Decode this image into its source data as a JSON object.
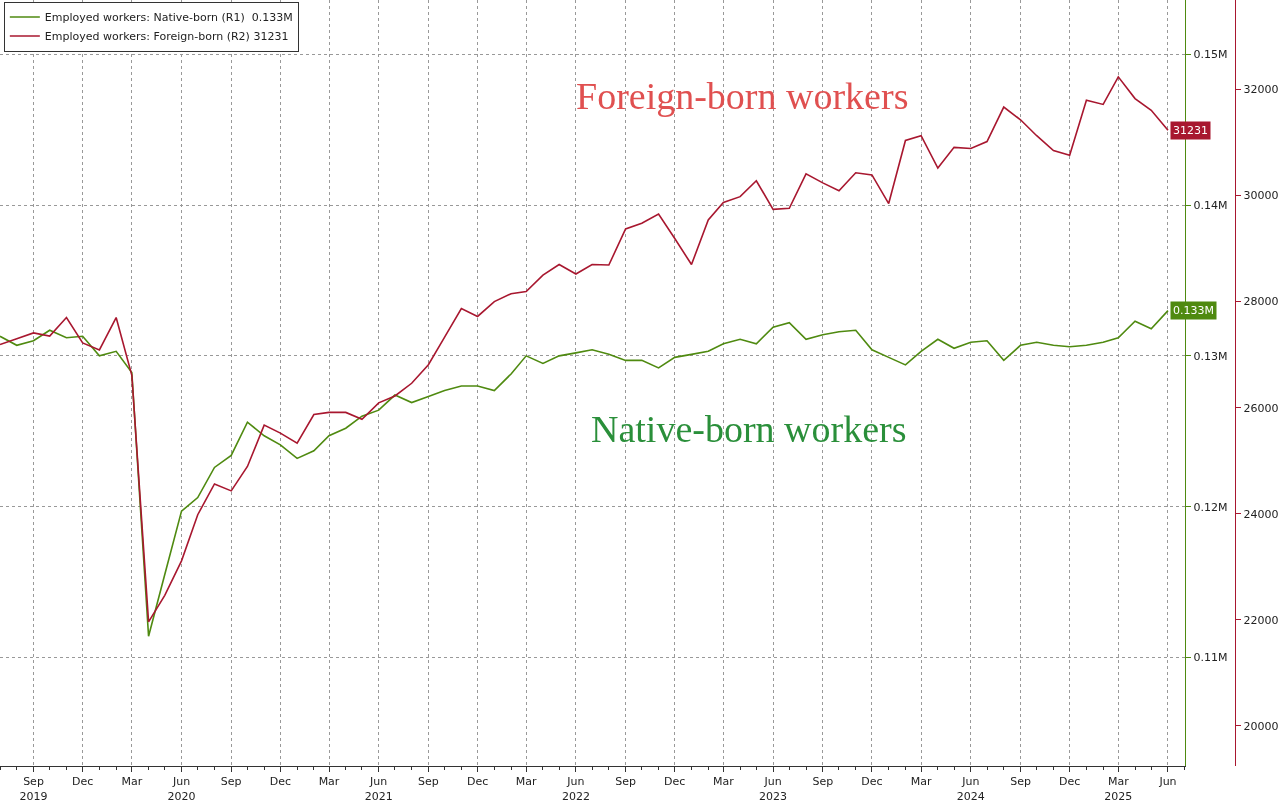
{
  "chart_data": {
    "type": "line",
    "x": [
      "2019-07",
      "2019-08",
      "2019-09",
      "2019-10",
      "2019-11",
      "2019-12",
      "2020-01",
      "2020-02",
      "2020-03",
      "2020-04",
      "2020-05",
      "2020-06",
      "2020-07",
      "2020-08",
      "2020-09",
      "2020-10",
      "2020-11",
      "2020-12",
      "2021-01",
      "2021-02",
      "2021-03",
      "2021-04",
      "2021-05",
      "2021-06",
      "2021-07",
      "2021-08",
      "2021-09",
      "2021-10",
      "2021-11",
      "2021-12",
      "2022-01",
      "2022-02",
      "2022-03",
      "2022-04",
      "2022-05",
      "2022-06",
      "2022-07",
      "2022-08",
      "2022-09",
      "2022-10",
      "2022-11",
      "2022-12",
      "2023-01",
      "2023-02",
      "2023-03",
      "2023-04",
      "2023-05",
      "2023-06",
      "2023-07",
      "2023-08",
      "2023-09",
      "2023-10",
      "2023-11",
      "2023-12",
      "2024-01",
      "2024-02",
      "2024-03",
      "2024-04",
      "2024-05",
      "2024-06",
      "2024-07",
      "2024-08",
      "2024-09",
      "2024-10",
      "2024-11",
      "2024-12",
      "2025-01",
      "2025-02",
      "2025-03",
      "2025-04",
      "2025-05",
      "2025-06"
    ],
    "series": [
      {
        "name": "Employed workers: Native-born (R1)  0.133M",
        "color": "#4f8a10",
        "values": [
          0.1313,
          0.1307,
          0.131,
          0.1317,
          0.1312,
          0.1313,
          0.13,
          0.1303,
          0.1289,
          0.1114,
          0.1155,
          0.1197,
          0.1206,
          0.1226,
          0.1234,
          0.1256,
          0.1247,
          0.1241,
          0.1232,
          0.1237,
          0.1247,
          0.1252,
          0.126,
          0.1264,
          0.1274,
          0.1269,
          0.1273,
          0.1277,
          0.128,
          0.128,
          0.1277,
          0.1288,
          0.13,
          0.1295,
          0.13,
          0.1302,
          0.1304,
          0.1301,
          0.1297,
          0.1297,
          0.1292,
          0.1299,
          0.1301,
          0.1303,
          0.1308,
          0.1311,
          0.1308,
          0.1319,
          0.1322,
          0.1311,
          0.1314,
          0.1316,
          0.1317,
          0.1304,
          0.1299,
          0.1294,
          0.1303,
          0.1311,
          0.1305,
          0.1309,
          0.131,
          0.1297,
          0.1307,
          0.1309,
          0.1307,
          0.1306,
          0.1307,
          0.1309,
          0.1312,
          0.1323,
          0.1318,
          0.133
        ],
        "value_labels": [
          null,
          null,
          null,
          null,
          null,
          null,
          null,
          null,
          null,
          null,
          null,
          null,
          null,
          null,
          null,
          null,
          null,
          null,
          null,
          null,
          null,
          null,
          null,
          null,
          null,
          null,
          null,
          null,
          null,
          null,
          null,
          null,
          null,
          null,
          null,
          null,
          null,
          null,
          null,
          null,
          null,
          null,
          null,
          null,
          null,
          null,
          null,
          null,
          null,
          null,
          null,
          null,
          null,
          null,
          null,
          null,
          null,
          null,
          null,
          null,
          null,
          null,
          null,
          null,
          null,
          null,
          null,
          null,
          null,
          null,
          null,
          "0.133M"
        ]
      },
      {
        "name": "Employed workers: Foreign-born (R2) 31231",
        "color": "#a8172f",
        "axis": "y2",
        "values": [
          27190,
          27300,
          27410,
          27350,
          27700,
          27220,
          27090,
          27700,
          26610,
          21960,
          22460,
          23110,
          23980,
          24560,
          24430,
          24890,
          25670,
          25520,
          25330,
          25870,
          25910,
          25910,
          25780,
          26090,
          26220,
          26460,
          26810,
          27330,
          27870,
          27720,
          28000,
          28150,
          28190,
          28500,
          28700,
          28520,
          28700,
          28690,
          29370,
          29480,
          29650,
          29190,
          28700,
          29540,
          29870,
          29980,
          30280,
          29740,
          29760,
          30410,
          30240,
          30090,
          30430,
          30390,
          29850,
          31040,
          31130,
          30520,
          30910,
          30890,
          31020,
          31670,
          31430,
          31130,
          30850,
          30760,
          31800,
          31720,
          32240,
          31830,
          31610,
          31231
        ],
        "value_labels": [
          null,
          null,
          null,
          null,
          null,
          null,
          null,
          null,
          null,
          null,
          null,
          null,
          null,
          null,
          null,
          null,
          null,
          null,
          null,
          null,
          null,
          null,
          null,
          null,
          null,
          null,
          null,
          null,
          null,
          null,
          null,
          null,
          null,
          null,
          null,
          null,
          null,
          null,
          null,
          null,
          null,
          null,
          null,
          null,
          null,
          null,
          null,
          null,
          null,
          null,
          null,
          null,
          null,
          null,
          null,
          null,
          null,
          null,
          null,
          null,
          null,
          null,
          null,
          null,
          null,
          null,
          null,
          null,
          null,
          null,
          null,
          "31231"
        ]
      }
    ],
    "xlim": [
      "2019-07-01",
      "2025-07-03"
    ],
    "xticks": [
      {
        "value": "2019-09-01",
        "label": "Sep\n2019"
      },
      {
        "value": "2019-12-01",
        "label": "Dec"
      },
      {
        "value": "2020-03-01",
        "label": "Mar"
      },
      {
        "value": "2020-06-01",
        "label": "Jun\n2020"
      },
      {
        "value": "2020-09-01",
        "label": "Sep"
      },
      {
        "value": "2020-12-01",
        "label": "Dec"
      },
      {
        "value": "2021-03-01",
        "label": "Mar"
      },
      {
        "value": "2021-06-01",
        "label": "Jun\n2021"
      },
      {
        "value": "2021-09-01",
        "label": "Sep"
      },
      {
        "value": "2021-12-01",
        "label": "Dec"
      },
      {
        "value": "2022-03-01",
        "label": "Mar"
      },
      {
        "value": "2022-06-01",
        "label": "Jun\n2022"
      },
      {
        "value": "2022-09-01",
        "label": "Sep"
      },
      {
        "value": "2022-12-01",
        "label": "Dec"
      },
      {
        "value": "2023-03-01",
        "label": "Mar"
      },
      {
        "value": "2023-06-01",
        "label": "Jun\n2023"
      },
      {
        "value": "2023-09-01",
        "label": "Sep"
      },
      {
        "value": "2023-12-01",
        "label": "Dec"
      },
      {
        "value": "2024-03-01",
        "label": "Mar"
      },
      {
        "value": "2024-06-01",
        "label": "Jun\n2024"
      },
      {
        "value": "2024-09-01",
        "label": "Sep"
      },
      {
        "value": "2024-12-01",
        "label": "Dec"
      },
      {
        "value": "2025-03-01",
        "label": "Mar\n2025"
      },
      {
        "value": "2025-06-01",
        "label": "Jun"
      }
    ],
    "ylim": [
      0.1028,
      0.1536
    ],
    "yticks": [
      {
        "value": 0.11,
        "label": "0.11M"
      },
      {
        "value": 0.12,
        "label": "0.12M"
      },
      {
        "value": 0.13,
        "label": "0.13M"
      },
      {
        "value": 0.14,
        "label": "0.14M"
      },
      {
        "value": 0.15,
        "label": "0.15M"
      }
    ],
    "y2lim": [
      19240,
      33690
    ],
    "y2ticks": [
      20000,
      22000,
      24000,
      26000,
      28000,
      30000,
      32000
    ],
    "annotations": [
      "Foreign-born workers",
      "Native-born workers"
    ],
    "grid": true,
    "legend": "top left"
  }
}
